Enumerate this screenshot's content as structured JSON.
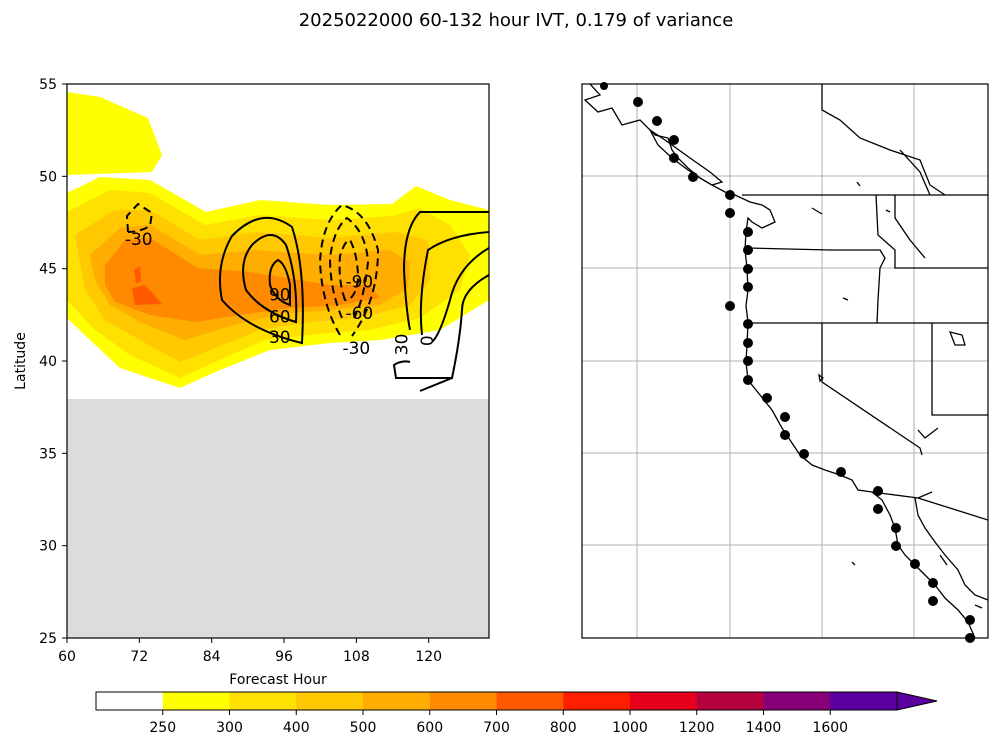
{
  "figure": {
    "title": "2025022000 60-132 hour IVT, 0.179 of variance"
  },
  "chart_data": [
    {
      "type": "contour",
      "xlabel": "Forecast Hour",
      "ylabel": "Latitude",
      "xlim": [
        60,
        130
      ],
      "ylim": [
        25,
        55
      ],
      "xticks": [
        60,
        72,
        84,
        96,
        108,
        120
      ],
      "yticks": [
        25,
        30,
        35,
        40,
        45,
        50,
        55
      ],
      "masked_region": {
        "lat_max": 38,
        "color": "#dcdcdc"
      },
      "contour_labels": [
        {
          "text": "-30",
          "x": 71.9,
          "y": 46.6
        },
        {
          "text": "90",
          "x": 95.3,
          "y": 43.6
        },
        {
          "text": "60",
          "x": 95.3,
          "y": 42.4
        },
        {
          "text": "30",
          "x": 95.3,
          "y": 41.3
        },
        {
          "text": "-90",
          "x": 108.5,
          "y": 44.3
        },
        {
          "text": "-60",
          "x": 108.5,
          "y": 42.6
        },
        {
          "text": "-30",
          "x": 108.0,
          "y": 40.7
        },
        {
          "text": "30",
          "x": 115.5,
          "y": 40.9
        },
        {
          "text": "0",
          "x": 119.7,
          "y": 41.1
        }
      ]
    },
    {
      "type": "map",
      "region": "U.S. West Coast",
      "station_count": 31
    }
  ],
  "colorbar": {
    "ticks": [
      "250",
      "300",
      "400",
      "500",
      "600",
      "700",
      "800",
      "1000",
      "1200",
      "1400",
      "1600"
    ],
    "colors": [
      "#ffffff",
      "#ffff00",
      "#ffe100",
      "#ffc800",
      "#ffad00",
      "#ff8a00",
      "#ff5a00",
      "#ff1e00",
      "#e6001e",
      "#b4003c",
      "#870078",
      "#5a00a0"
    ],
    "extend": "max"
  }
}
